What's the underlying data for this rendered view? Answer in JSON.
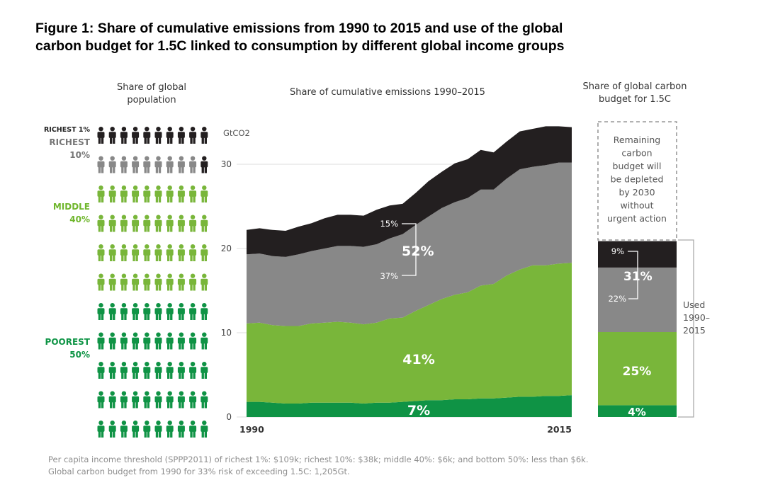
{
  "title_lines": [
    "Figure 1: Share of cumulative emissions from 1990 to 2015 and use of the global",
    "carbon budget for 1.5C linked to consumption by different global income groups"
  ],
  "colors": {
    "richest1": "#231f20",
    "richest10": "#888888",
    "middle40": "#79b63a",
    "poorest50": "#0f9345",
    "label_gray": "#777777",
    "label_green": "#6fb62c",
    "label_dark_green": "#0e9445",
    "dashed": "#999999"
  },
  "population": {
    "heading_lines": [
      "Share of global",
      "population"
    ],
    "groups": [
      {
        "lines": [
          "RICHEST 1%"
        ],
        "color_key": "richest1",
        "rows": 1
      },
      {
        "lines": [
          "RICHEST",
          "10%"
        ],
        "color_key": "richest10",
        "rows": 1
      },
      {
        "lines": [
          "MIDDLE",
          "40%"
        ],
        "color_key": "middle40",
        "rows": 4
      },
      {
        "lines": [
          "POOREST",
          "50%"
        ],
        "color_key": "poorest50",
        "rows": 5
      }
    ],
    "icons_per_row": 10
  },
  "chart_data": {
    "type": "area",
    "title": "Share of cumulative emissions 1990–2015",
    "ylabel": "GtCO2",
    "ylim": [
      0,
      33
    ],
    "yticks": [
      0,
      10,
      20,
      30
    ],
    "x_tick_labels": [
      "1990",
      "2015"
    ],
    "x": [
      1990,
      1991,
      1992,
      1993,
      1994,
      1995,
      1996,
      1997,
      1998,
      1999,
      2000,
      2001,
      2002,
      2003,
      2004,
      2005,
      2006,
      2007,
      2008,
      2009,
      2010,
      2011,
      2012,
      2013,
      2014,
      2015
    ],
    "stacked_boundaries": {
      "poorest_top": [
        1.8,
        1.8,
        1.7,
        1.6,
        1.6,
        1.7,
        1.7,
        1.7,
        1.7,
        1.6,
        1.7,
        1.7,
        1.8,
        1.9,
        2.0,
        2.0,
        2.1,
        2.1,
        2.2,
        2.2,
        2.3,
        2.4,
        2.4,
        2.5,
        2.5,
        2.6
      ],
      "middle_top": [
        11.1,
        11.2,
        10.9,
        10.8,
        10.8,
        11.1,
        11.2,
        11.3,
        11.2,
        11.0,
        11.2,
        11.7,
        11.8,
        12.6,
        13.3,
        14.0,
        14.5,
        14.8,
        15.6,
        15.8,
        16.8,
        17.5,
        18.0,
        18.0,
        18.2,
        18.3
      ],
      "richest10_top": [
        19.3,
        19.4,
        19.1,
        19.0,
        19.3,
        19.7,
        20.0,
        20.3,
        20.3,
        20.2,
        20.5,
        21.2,
        21.7,
        22.8,
        23.8,
        24.8,
        25.5,
        26.0,
        27.0,
        27.0,
        28.3,
        29.4,
        29.7,
        29.9,
        30.2,
        30.2
      ],
      "richest1_top": [
        22.2,
        22.4,
        22.2,
        22.1,
        22.6,
        23.0,
        23.6,
        24.0,
        24.0,
        23.9,
        24.6,
        25.1,
        25.3,
        26.6,
        28.0,
        29.1,
        30.1,
        30.6,
        31.7,
        31.4,
        32.7,
        33.9,
        34.2,
        34.5,
        34.5,
        34.4
      ]
    },
    "series": [
      {
        "name": "Poorest 50%",
        "color_key": "poorest50",
        "share_label": "7%"
      },
      {
        "name": "Middle 40%",
        "color_key": "middle40",
        "share_label": "41%"
      },
      {
        "name": "Richest 10%",
        "color_key": "richest10",
        "share_label": "37%"
      },
      {
        "name": "Richest 1%",
        "color_key": "richest1",
        "share_label": "15%"
      }
    ],
    "combined_label": "52%"
  },
  "budget": {
    "heading_lines": [
      "Share of global carbon",
      "budget for 1.5C"
    ],
    "remaining_lines": [
      "Remaining",
      "carbon",
      "budget will",
      "be depleted",
      "by 2030",
      "without",
      "urgent action"
    ],
    "used_lines": [
      "Used",
      "1990–",
      "2015"
    ],
    "segments": [
      {
        "group": "Poorest 50%",
        "value_pct": 4,
        "label": "4%",
        "color_key": "poorest50"
      },
      {
        "group": "Middle 40%",
        "value_pct": 25,
        "label": "25%",
        "color_key": "middle40"
      },
      {
        "group": "Richest 10%",
        "value_pct": 22,
        "label": "22%",
        "color_key": "richest10"
      },
      {
        "group": "Richest 1%",
        "value_pct": 9,
        "label": "9%",
        "color_key": "richest1"
      }
    ],
    "combined_label": "31%"
  },
  "footnote_lines": [
    "Per capita income threshold (SPPP2011) of richest 1%: $109k; richest 10%: $38k; middle 40%: $6k; and bottom 50%: less than $6k.",
    "Global carbon budget from 1990 for 33% risk of exceeding 1.5C: 1,205Gt."
  ]
}
